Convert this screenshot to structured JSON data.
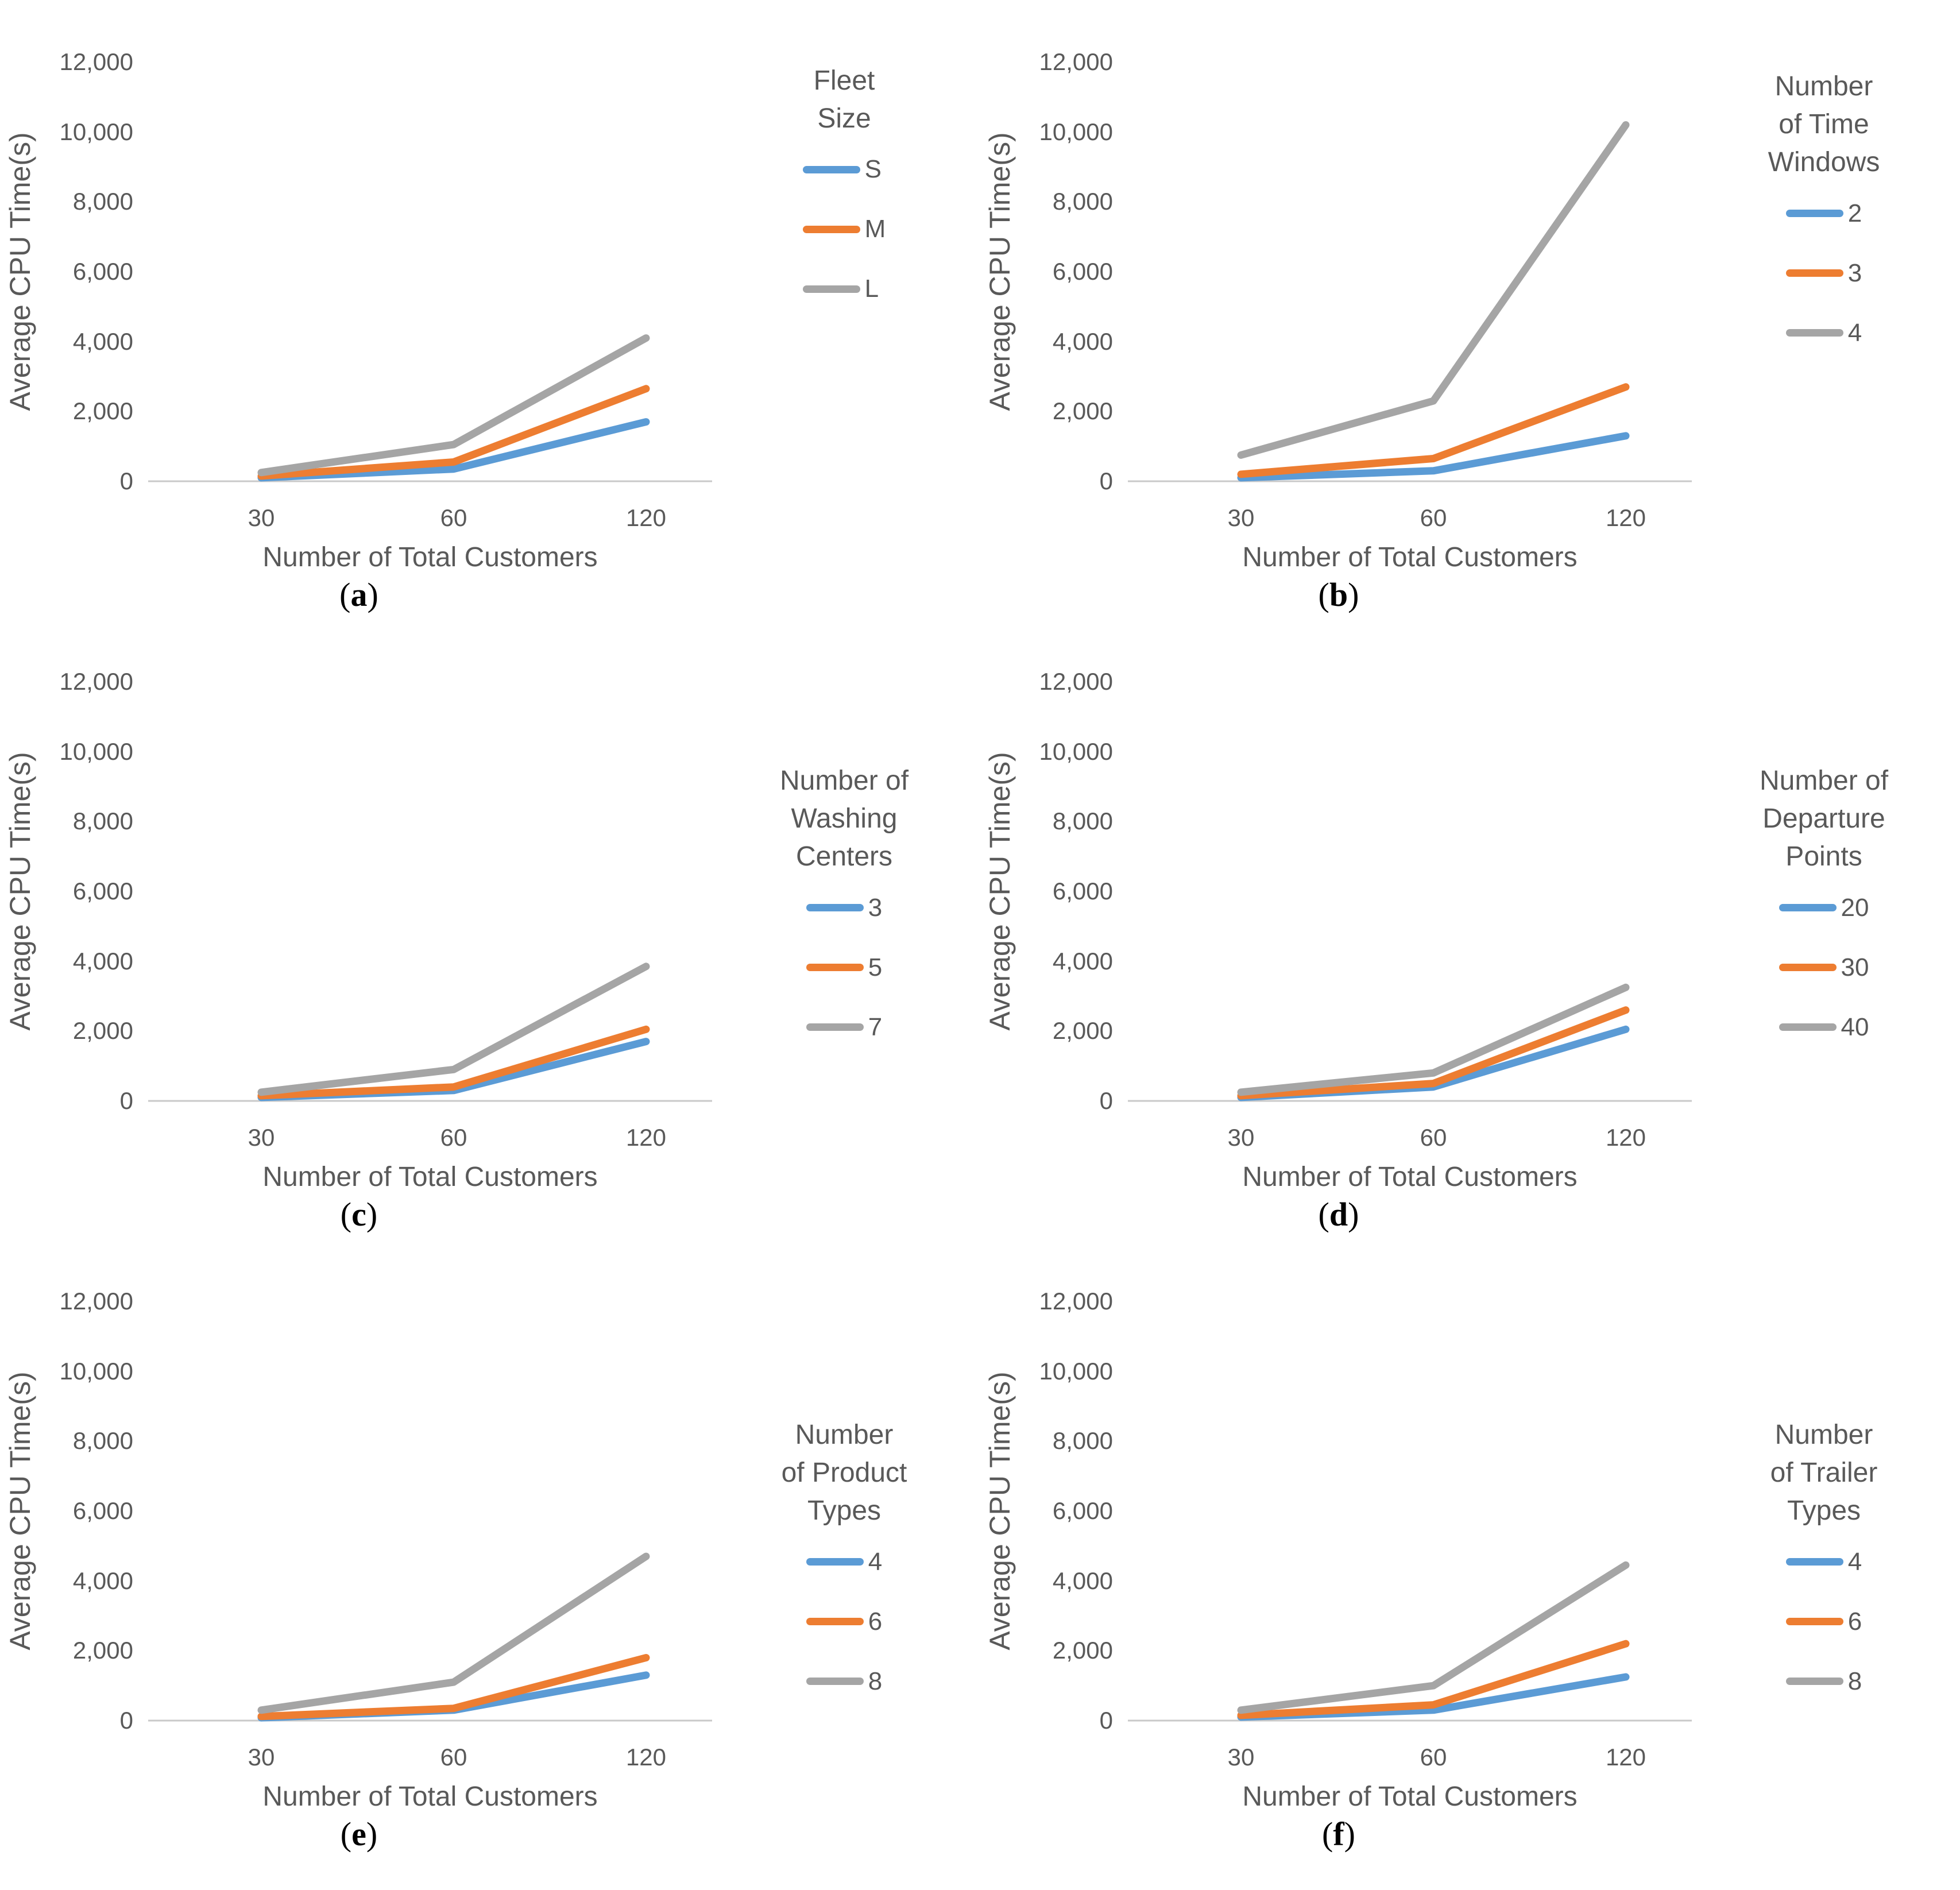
{
  "figure": {
    "caption_open": "(",
    "caption_close": ")",
    "y_axis_label": "Average CPU Time(s)",
    "x_axis_label": "Number of Total Customers",
    "y_tick_labels": [
      "12,000",
      "10,000",
      "8,000",
      "6,000",
      "4,000",
      "2,000",
      "0"
    ],
    "x_tick_labels": [
      "30",
      "60",
      "120"
    ],
    "text_color": "#595959",
    "axis_line_color": "#C9C9C9",
    "series_palette": {
      "blue": "#5B9BD5",
      "orange": "#ED7D31",
      "gray": "#A5A5A5"
    }
  },
  "chart_data": [
    {
      "type": "line",
      "caption_letter": "a",
      "legend_title": "Fleet Size",
      "legend_title_lines": [
        "Fleet",
        "Size"
      ],
      "legend_position": "right",
      "xlabel": "Number of Total Customers",
      "ylabel": "Average CPU Time(s)",
      "x": [
        "30",
        "60",
        "120"
      ],
      "ylim": [
        0,
        12000
      ],
      "grid": false,
      "series": [
        {
          "label": "S",
          "color": "#5B9BD5",
          "values": [
            100,
            350,
            1700
          ]
        },
        {
          "label": "M",
          "color": "#ED7D31",
          "values": [
            150,
            550,
            2650
          ]
        },
        {
          "label": "L",
          "color": "#A5A5A5",
          "values": [
            250,
            1050,
            4100
          ]
        }
      ]
    },
    {
      "type": "line",
      "caption_letter": "b",
      "legend_title": "Number of Time Windows",
      "legend_title_lines": [
        "Number",
        "of Time",
        "Windows"
      ],
      "legend_position": "right",
      "xlabel": "Number of Total Customers",
      "ylabel": "Average CPU Time(s)",
      "x": [
        "30",
        "60",
        "120"
      ],
      "ylim": [
        0,
        12000
      ],
      "grid": false,
      "series": [
        {
          "label": "2",
          "color": "#5B9BD5",
          "values": [
            100,
            300,
            1300
          ]
        },
        {
          "label": "3",
          "color": "#ED7D31",
          "values": [
            200,
            650,
            2700
          ]
        },
        {
          "label": "4",
          "color": "#A5A5A5",
          "values": [
            750,
            2300,
            10200
          ]
        }
      ]
    },
    {
      "type": "line",
      "caption_letter": "c",
      "legend_title": "Number of Washing Centers",
      "legend_title_lines": [
        "Number of",
        "Washing",
        "Centers"
      ],
      "legend_position": "right",
      "xlabel": "Number of Total Customers",
      "ylabel": "Average CPU Time(s)",
      "x": [
        "30",
        "60",
        "120"
      ],
      "ylim": [
        0,
        12000
      ],
      "grid": false,
      "series": [
        {
          "label": "3",
          "color": "#5B9BD5",
          "values": [
            100,
            300,
            1700
          ]
        },
        {
          "label": "5",
          "color": "#ED7D31",
          "values": [
            150,
            400,
            2050
          ]
        },
        {
          "label": "7",
          "color": "#A5A5A5",
          "values": [
            250,
            900,
            3850
          ]
        }
      ]
    },
    {
      "type": "line",
      "caption_letter": "d",
      "legend_title": "Number of Departure Points",
      "legend_title_lines": [
        "Number of",
        "Departure",
        "Points"
      ],
      "legend_position": "right",
      "xlabel": "Number of Total Customers",
      "ylabel": "Average CPU Time(s)",
      "x": [
        "30",
        "60",
        "120"
      ],
      "ylim": [
        0,
        12000
      ],
      "grid": false,
      "series": [
        {
          "label": "20",
          "color": "#5B9BD5",
          "values": [
            100,
            400,
            2050
          ]
        },
        {
          "label": "30",
          "color": "#ED7D31",
          "values": [
            150,
            500,
            2600
          ]
        },
        {
          "label": "40",
          "color": "#A5A5A5",
          "values": [
            250,
            800,
            3250
          ]
        }
      ]
    },
    {
      "type": "line",
      "caption_letter": "e",
      "legend_title": "Number of Product Types",
      "legend_title_lines": [
        "Number",
        "of Product",
        "Types"
      ],
      "legend_position": "right",
      "xlabel": "Number of Total Customers",
      "ylabel": "Average CPU Time(s)",
      "x": [
        "30",
        "60",
        "120"
      ],
      "ylim": [
        0,
        12000
      ],
      "grid": false,
      "series": [
        {
          "label": "4",
          "color": "#5B9BD5",
          "values": [
            80,
            300,
            1300
          ]
        },
        {
          "label": "6",
          "color": "#ED7D31",
          "values": [
            120,
            350,
            1800
          ]
        },
        {
          "label": "8",
          "color": "#A5A5A5",
          "values": [
            300,
            1100,
            4700
          ]
        }
      ]
    },
    {
      "type": "line",
      "caption_letter": "f",
      "legend_title": "Number of Trailer Types",
      "legend_title_lines": [
        "Number",
        "of Trailer",
        "Types"
      ],
      "legend_position": "right",
      "xlabel": "Number of Total Customers",
      "ylabel": "Average CPU Time(s)",
      "x": [
        "30",
        "60",
        "120"
      ],
      "ylim": [
        0,
        12000
      ],
      "grid": false,
      "series": [
        {
          "label": "4",
          "color": "#5B9BD5",
          "values": [
            100,
            300,
            1250
          ]
        },
        {
          "label": "6",
          "color": "#ED7D31",
          "values": [
            150,
            450,
            2200
          ]
        },
        {
          "label": "8",
          "color": "#A5A5A5",
          "values": [
            300,
            1000,
            4450
          ]
        }
      ]
    }
  ]
}
